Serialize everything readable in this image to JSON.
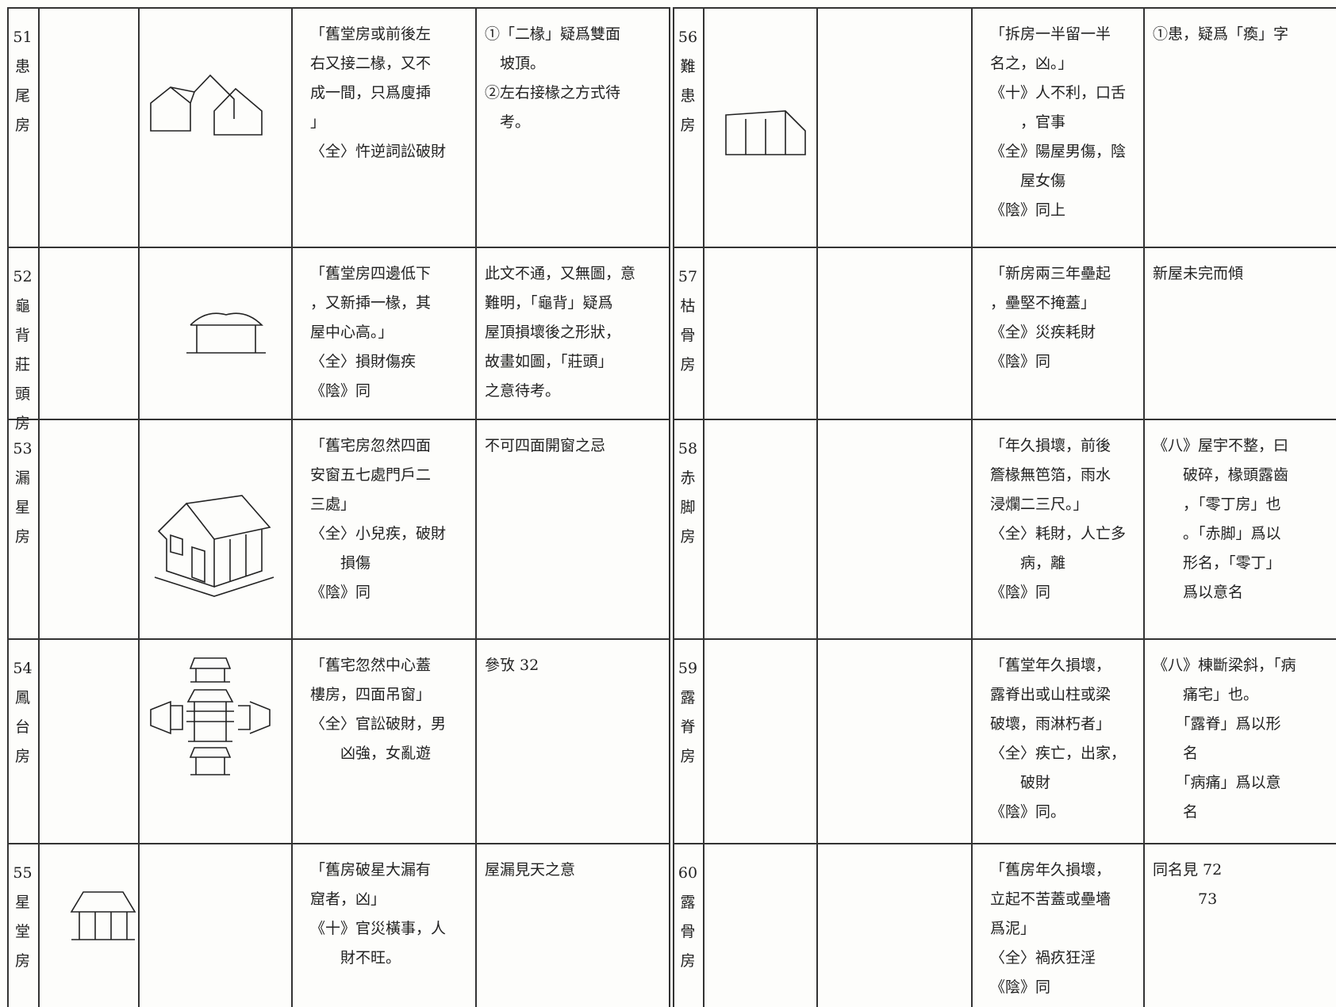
{
  "rows": [
    {
      "number": "51",
      "name": "患尾房",
      "description": [
        "「舊堂房或前後左",
        "右又接二椽，又不",
        "成一間，只爲廋揷",
        "」",
        "〈全〉忤逆詞訟破財"
      ],
      "notes": [
        "①「二椽」疑爲雙面",
        "　坡頂。",
        "②左右接椽之方式待",
        "　考。"
      ]
    },
    {
      "number": "52",
      "name": "龜背莊頭房",
      "description": [
        "「舊堂房四邊低下",
        "，又新揷一椽，其",
        "屋中心高。」",
        "〈全〉損財傷疾",
        "《陰》同"
      ],
      "notes": [
        "此文不通，又無圖，意",
        "難明，「龜背」疑爲",
        "屋頂損壞後之形狀，",
        "故畫如圖，「莊頭」",
        "之意待考。"
      ]
    },
    {
      "number": "53",
      "name": "漏星房",
      "description": [
        "「舊宅房忽然四面",
        "安窗五七處門戶二",
        "三處」",
        "〈全〉小兒疾，破財",
        "　　損傷",
        "《陰》同"
      ],
      "notes": [
        "不可四面開窗之忌"
      ]
    },
    {
      "number": "54",
      "name": "鳳台房",
      "description": [
        "「舊宅忽然中心蓋",
        "樓房，四面吊窗」",
        "〈全〉官訟破財，男",
        "　　凶強，女亂遊"
      ],
      "notes": [
        "參攷 32"
      ]
    },
    {
      "number": "55",
      "name": "星堂房",
      "description": [
        "「舊房破星大漏有",
        "窟者，凶」",
        "《十》官災橫事，人",
        "　　財不旺。"
      ],
      "notes": [
        "屋漏見天之意"
      ]
    },
    {
      "number": "56",
      "name": "難患房",
      "description": [
        "「拆房一半留一半",
        "名之，凶。」",
        "《十》人不利，口舌",
        "　　，官事",
        "《全》陽屋男傷，陰",
        "　　屋女傷",
        "《陰》同上"
      ],
      "notes": [
        "①患，疑爲「瘓」字"
      ]
    },
    {
      "number": "57",
      "name": "枯骨房",
      "description": [
        "「新房兩三年壘起",
        "，壘堅不掩蓋」",
        "《全》災疾耗財",
        "《陰》同"
      ],
      "notes": [
        "新屋未完而傾"
      ]
    },
    {
      "number": "58",
      "name": "赤脚房",
      "description": [
        "「年久損壞，前後",
        "簷椽無笆箔，雨水",
        "浸爛二三尺。」",
        "〈全〉耗財，人亡多",
        "　　病，離",
        "《陰》同"
      ],
      "notes": [
        "《八》屋宇不整，曰",
        "　　破碎，椽頭露齒",
        "　　，「零丁房」也",
        "　　。「赤脚」爲以",
        "　　形名，「零丁」",
        "　　爲以意名"
      ]
    },
    {
      "number": "59",
      "name": "露脊房",
      "description": [
        "「舊堂年久損壞，",
        "露脊出或山柱或梁",
        "破壞，雨淋朽者」",
        "〈全〉疾亡，出家，",
        "　　破財",
        "《陰》同。"
      ],
      "notes": [
        "《八》棟斷梁斜，「病",
        "　　痛宅」也。",
        "　　「露脊」爲以形",
        "　　名",
        "　　「病痛」爲以意",
        "　　名"
      ]
    },
    {
      "number": "60",
      "name": "露骨房",
      "description": [
        "「舊房年久損壞，",
        "立起不苦蓋或壘墻",
        "爲泥」",
        "〈全〉禍疚狂淫",
        "《陰》同"
      ],
      "notes": [
        "同名見 72",
        "　　　73"
      ]
    }
  ]
}
